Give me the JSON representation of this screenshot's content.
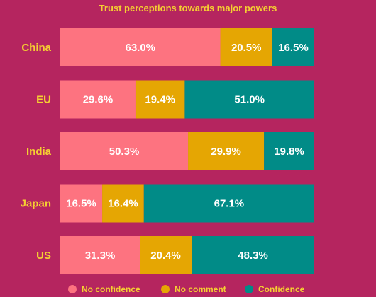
{
  "chart_data": {
    "type": "bar",
    "orientation": "horizontal",
    "stacked": true,
    "title": "Trust perceptions towards major powers",
    "categories": [
      "China",
      "EU",
      "India",
      "Japan",
      "US"
    ],
    "series": [
      {
        "name": "No confidence",
        "color": "#fd7380",
        "values": [
          63.0,
          29.6,
          50.3,
          16.5,
          31.3
        ]
      },
      {
        "name": "No comment",
        "color": "#e5a603",
        "values": [
          20.5,
          19.4,
          29.9,
          16.4,
          20.4
        ]
      },
      {
        "name": "Confidence",
        "color": "#018b87",
        "values": [
          16.5,
          51.0,
          19.8,
          67.1,
          48.3
        ]
      }
    ],
    "value_suffix": "%",
    "xlim": [
      0,
      100
    ],
    "legend_position": "bottom",
    "grid": false
  },
  "colors": {
    "background": "#b5255f",
    "text_accent": "#f5cf32",
    "value_text": "#ffffff"
  }
}
